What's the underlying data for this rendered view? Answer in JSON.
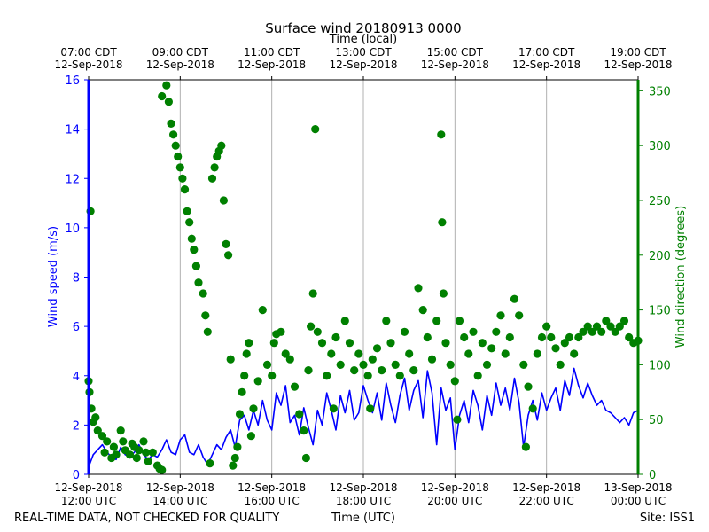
{
  "chart_data": {
    "type": "scatter",
    "title": "Surface wind 20180913 0000",
    "top_xlabel": "Time (local)",
    "xlabel": "Time (UTC)",
    "ylabel_left": "Wind speed (m/s)",
    "ylabel_right": "Wind direction (degrees)",
    "footer_left": "REAL-TIME DATA, NOT CHECKED FOR QUALITY",
    "footer_right": "Site: ISS1",
    "xlim_hours": [
      12,
      24
    ],
    "ylim_left": [
      0,
      16
    ],
    "ylim_right": [
      0,
      360
    ],
    "left_ticks": [
      0,
      2,
      4,
      6,
      8,
      10,
      12,
      14,
      16
    ],
    "right_ticks": [
      0,
      50,
      100,
      150,
      200,
      250,
      300,
      350
    ],
    "bottom_ticks": [
      {
        "hour": 12,
        "line1": "12-Sep-2018",
        "line2": "12:00 UTC"
      },
      {
        "hour": 14,
        "line1": "12-Sep-2018",
        "line2": "14:00 UTC"
      },
      {
        "hour": 16,
        "line1": "12-Sep-2018",
        "line2": "16:00 UTC"
      },
      {
        "hour": 18,
        "line1": "12-Sep-2018",
        "line2": "18:00 UTC"
      },
      {
        "hour": 20,
        "line1": "12-Sep-2018",
        "line2": "20:00 UTC"
      },
      {
        "hour": 22,
        "line1": "12-Sep-2018",
        "line2": "22:00 UTC"
      },
      {
        "hour": 24,
        "line1": "13-Sep-2018",
        "line2": "00:00 UTC"
      }
    ],
    "top_ticks": [
      {
        "hour": 12,
        "line1": "07:00 CDT",
        "line2": "12-Sep-2018"
      },
      {
        "hour": 14,
        "line1": "09:00 CDT",
        "line2": "12-Sep-2018"
      },
      {
        "hour": 16,
        "line1": "11:00 CDT",
        "line2": "12-Sep-2018"
      },
      {
        "hour": 18,
        "line1": "13:00 CDT",
        "line2": "12-Sep-2018"
      },
      {
        "hour": 20,
        "line1": "15:00 CDT",
        "line2": "12-Sep-2018"
      },
      {
        "hour": 22,
        "line1": "17:00 CDT",
        "line2": "12-Sep-2018"
      },
      {
        "hour": 24,
        "line1": "19:00 CDT",
        "line2": "12-Sep-2018"
      }
    ],
    "series": [
      {
        "name": "Wind speed",
        "axis": "left",
        "kind": "line",
        "color": "#0000ff",
        "points": [
          [
            12.0,
            0.3
          ],
          [
            12.1,
            0.8
          ],
          [
            12.2,
            1.0
          ],
          [
            12.3,
            1.2
          ],
          [
            12.4,
            0.9
          ],
          [
            12.5,
            0.7
          ],
          [
            12.6,
            0.6
          ],
          [
            12.7,
            1.1
          ],
          [
            12.8,
            0.8
          ],
          [
            12.9,
            0.7
          ],
          [
            13.0,
            0.9
          ],
          [
            13.1,
            1.2
          ],
          [
            13.2,
            0.8
          ],
          [
            13.3,
            0.6
          ],
          [
            13.4,
            0.8
          ],
          [
            13.5,
            0.7
          ],
          [
            13.6,
            1.0
          ],
          [
            13.7,
            1.4
          ],
          [
            13.8,
            0.9
          ],
          [
            13.9,
            0.8
          ],
          [
            14.0,
            1.4
          ],
          [
            14.1,
            1.6
          ],
          [
            14.2,
            0.9
          ],
          [
            14.3,
            0.8
          ],
          [
            14.4,
            1.2
          ],
          [
            14.5,
            0.7
          ],
          [
            14.6,
            0.4
          ],
          [
            14.7,
            0.8
          ],
          [
            14.8,
            1.2
          ],
          [
            14.9,
            1.0
          ],
          [
            15.0,
            1.5
          ],
          [
            15.1,
            1.8
          ],
          [
            15.2,
            1.1
          ],
          [
            15.3,
            2.2
          ],
          [
            15.4,
            2.4
          ],
          [
            15.5,
            1.8
          ],
          [
            15.6,
            2.6
          ],
          [
            15.7,
            2.0
          ],
          [
            15.8,
            3.0
          ],
          [
            15.9,
            2.2
          ],
          [
            16.0,
            1.8
          ],
          [
            16.1,
            3.3
          ],
          [
            16.2,
            2.8
          ],
          [
            16.3,
            3.6
          ],
          [
            16.4,
            2.1
          ],
          [
            16.5,
            2.4
          ],
          [
            16.6,
            1.6
          ],
          [
            16.7,
            2.7
          ],
          [
            16.8,
            1.9
          ],
          [
            16.9,
            1.2
          ],
          [
            17.0,
            2.6
          ],
          [
            17.1,
            2.0
          ],
          [
            17.2,
            3.3
          ],
          [
            17.3,
            2.6
          ],
          [
            17.4,
            1.8
          ],
          [
            17.5,
            3.2
          ],
          [
            17.6,
            2.5
          ],
          [
            17.7,
            3.4
          ],
          [
            17.8,
            2.2
          ],
          [
            17.9,
            2.5
          ],
          [
            18.0,
            3.6
          ],
          [
            18.1,
            3.0
          ],
          [
            18.2,
            2.5
          ],
          [
            18.3,
            3.3
          ],
          [
            18.4,
            2.2
          ],
          [
            18.5,
            3.7
          ],
          [
            18.6,
            2.8
          ],
          [
            18.7,
            2.1
          ],
          [
            18.8,
            3.2
          ],
          [
            18.9,
            3.9
          ],
          [
            19.0,
            2.6
          ],
          [
            19.1,
            3.4
          ],
          [
            19.2,
            3.8
          ],
          [
            19.3,
            2.3
          ],
          [
            19.4,
            4.2
          ],
          [
            19.5,
            3.3
          ],
          [
            19.6,
            1.2
          ],
          [
            19.7,
            3.5
          ],
          [
            19.8,
            2.6
          ],
          [
            19.9,
            3.1
          ],
          [
            20.0,
            1.0
          ],
          [
            20.1,
            2.4
          ],
          [
            20.2,
            3.0
          ],
          [
            20.3,
            2.1
          ],
          [
            20.4,
            3.4
          ],
          [
            20.5,
            2.8
          ],
          [
            20.6,
            1.8
          ],
          [
            20.7,
            3.2
          ],
          [
            20.8,
            2.4
          ],
          [
            20.9,
            3.7
          ],
          [
            21.0,
            2.8
          ],
          [
            21.1,
            3.5
          ],
          [
            21.2,
            2.6
          ],
          [
            21.3,
            3.9
          ],
          [
            21.4,
            2.9
          ],
          [
            21.5,
            1.1
          ],
          [
            21.6,
            2.4
          ],
          [
            21.7,
            3.0
          ],
          [
            21.8,
            2.2
          ],
          [
            21.9,
            3.3
          ],
          [
            22.0,
            2.6
          ],
          [
            22.1,
            3.1
          ],
          [
            22.2,
            3.5
          ],
          [
            22.3,
            2.6
          ],
          [
            22.4,
            3.8
          ],
          [
            22.5,
            3.2
          ],
          [
            22.6,
            4.3
          ],
          [
            22.7,
            3.6
          ],
          [
            22.8,
            3.1
          ],
          [
            22.9,
            3.7
          ],
          [
            23.0,
            3.2
          ],
          [
            23.1,
            2.8
          ],
          [
            23.2,
            3.0
          ],
          [
            23.3,
            2.6
          ],
          [
            23.4,
            2.5
          ],
          [
            23.5,
            2.3
          ],
          [
            23.6,
            2.1
          ],
          [
            23.7,
            2.3
          ],
          [
            23.8,
            2.0
          ],
          [
            23.9,
            2.5
          ],
          [
            24.0,
            2.6
          ]
        ]
      },
      {
        "name": "Wind direction",
        "axis": "right",
        "kind": "scatter",
        "color": "#008000",
        "points": [
          [
            12.0,
            85
          ],
          [
            12.02,
            75
          ],
          [
            12.04,
            240
          ],
          [
            12.06,
            60
          ],
          [
            12.1,
            48
          ],
          [
            12.15,
            52
          ],
          [
            12.2,
            40
          ],
          [
            12.3,
            35
          ],
          [
            12.35,
            20
          ],
          [
            12.4,
            30
          ],
          [
            12.5,
            15
          ],
          [
            12.55,
            25
          ],
          [
            12.6,
            18
          ],
          [
            12.7,
            40
          ],
          [
            12.75,
            30
          ],
          [
            12.8,
            22
          ],
          [
            12.9,
            18
          ],
          [
            12.95,
            28
          ],
          [
            13.0,
            25
          ],
          [
            13.05,
            15
          ],
          [
            13.1,
            22
          ],
          [
            13.2,
            30
          ],
          [
            13.25,
            20
          ],
          [
            13.3,
            12
          ],
          [
            13.4,
            20
          ],
          [
            13.5,
            8
          ],
          [
            13.55,
            5
          ],
          [
            13.6,
            4
          ],
          [
            13.6,
            345
          ],
          [
            13.7,
            355
          ],
          [
            13.75,
            340
          ],
          [
            13.8,
            320
          ],
          [
            13.85,
            310
          ],
          [
            13.9,
            300
          ],
          [
            13.95,
            290
          ],
          [
            14.0,
            280
          ],
          [
            14.05,
            270
          ],
          [
            14.1,
            260
          ],
          [
            14.15,
            240
          ],
          [
            14.2,
            230
          ],
          [
            14.25,
            215
          ],
          [
            14.3,
            205
          ],
          [
            14.35,
            190
          ],
          [
            14.4,
            175
          ],
          [
            14.5,
            165
          ],
          [
            14.55,
            145
          ],
          [
            14.6,
            130
          ],
          [
            14.65,
            10
          ],
          [
            14.7,
            270
          ],
          [
            14.75,
            280
          ],
          [
            14.8,
            290
          ],
          [
            14.85,
            295
          ],
          [
            14.9,
            300
          ],
          [
            14.95,
            250
          ],
          [
            15.0,
            210
          ],
          [
            15.05,
            200
          ],
          [
            15.1,
            105
          ],
          [
            15.15,
            8
          ],
          [
            15.2,
            15
          ],
          [
            15.25,
            25
          ],
          [
            15.3,
            55
          ],
          [
            15.35,
            75
          ],
          [
            15.4,
            90
          ],
          [
            15.45,
            110
          ],
          [
            15.5,
            120
          ],
          [
            15.55,
            35
          ],
          [
            15.6,
            60
          ],
          [
            15.7,
            85
          ],
          [
            15.8,
            150
          ],
          [
            15.9,
            100
          ],
          [
            16.0,
            90
          ],
          [
            16.05,
            120
          ],
          [
            16.1,
            128
          ],
          [
            16.2,
            130
          ],
          [
            16.3,
            110
          ],
          [
            16.4,
            105
          ],
          [
            16.5,
            80
          ],
          [
            16.6,
            55
          ],
          [
            16.7,
            40
          ],
          [
            16.75,
            15
          ],
          [
            16.8,
            95
          ],
          [
            16.85,
            135
          ],
          [
            16.9,
            165
          ],
          [
            16.95,
            315
          ],
          [
            17.0,
            130
          ],
          [
            17.1,
            120
          ],
          [
            17.2,
            90
          ],
          [
            17.3,
            110
          ],
          [
            17.35,
            60
          ],
          [
            17.4,
            125
          ],
          [
            17.5,
            100
          ],
          [
            17.6,
            140
          ],
          [
            17.7,
            120
          ],
          [
            17.8,
            95
          ],
          [
            17.9,
            110
          ],
          [
            18.0,
            100
          ],
          [
            18.1,
            90
          ],
          [
            18.15,
            60
          ],
          [
            18.2,
            105
          ],
          [
            18.3,
            115
          ],
          [
            18.4,
            95
          ],
          [
            18.5,
            140
          ],
          [
            18.6,
            120
          ],
          [
            18.7,
            100
          ],
          [
            18.8,
            90
          ],
          [
            18.9,
            130
          ],
          [
            19.0,
            110
          ],
          [
            19.1,
            95
          ],
          [
            19.2,
            170
          ],
          [
            19.3,
            150
          ],
          [
            19.4,
            125
          ],
          [
            19.5,
            105
          ],
          [
            19.6,
            140
          ],
          [
            19.7,
            310
          ],
          [
            19.72,
            230
          ],
          [
            19.75,
            165
          ],
          [
            19.8,
            120
          ],
          [
            19.9,
            100
          ],
          [
            20.0,
            85
          ],
          [
            20.05,
            50
          ],
          [
            20.1,
            140
          ],
          [
            20.2,
            125
          ],
          [
            20.3,
            110
          ],
          [
            20.4,
            130
          ],
          [
            20.5,
            90
          ],
          [
            20.6,
            120
          ],
          [
            20.7,
            100
          ],
          [
            20.8,
            115
          ],
          [
            20.9,
            130
          ],
          [
            21.0,
            145
          ],
          [
            21.1,
            110
          ],
          [
            21.2,
            125
          ],
          [
            21.3,
            160
          ],
          [
            21.4,
            145
          ],
          [
            21.5,
            100
          ],
          [
            21.55,
            25
          ],
          [
            21.6,
            80
          ],
          [
            21.7,
            60
          ],
          [
            21.8,
            110
          ],
          [
            21.9,
            125
          ],
          [
            22.0,
            135
          ],
          [
            22.1,
            125
          ],
          [
            22.2,
            115
          ],
          [
            22.3,
            100
          ],
          [
            22.4,
            120
          ],
          [
            22.5,
            125
          ],
          [
            22.6,
            110
          ],
          [
            22.7,
            125
          ],
          [
            22.8,
            130
          ],
          [
            22.9,
            135
          ],
          [
            23.0,
            130
          ],
          [
            23.1,
            135
          ],
          [
            23.2,
            130
          ],
          [
            23.3,
            140
          ],
          [
            23.4,
            135
          ],
          [
            23.5,
            130
          ],
          [
            23.6,
            135
          ],
          [
            23.7,
            140
          ],
          [
            23.8,
            125
          ],
          [
            23.9,
            120
          ],
          [
            24.0,
            122
          ]
        ]
      }
    ]
  }
}
